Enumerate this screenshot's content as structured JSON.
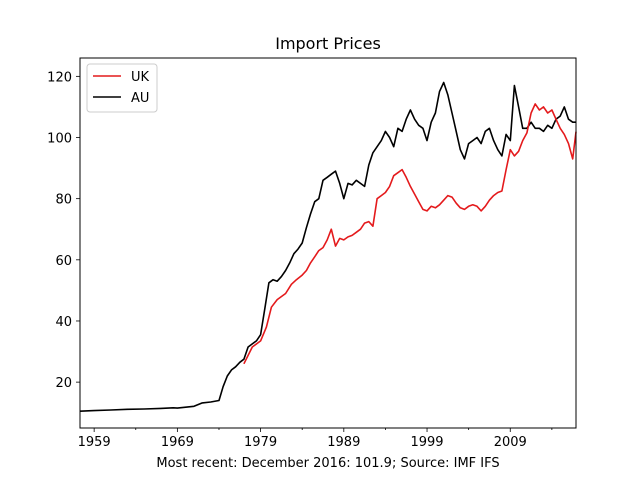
{
  "chart_data": {
    "type": "line",
    "title": "Import Prices",
    "xlabel": "Most recent: December 2016: 101.9; Source: IMF IFS",
    "ylabel": "",
    "xlim": [
      1957.3,
      2016.9
    ],
    "ylim": [
      5,
      126
    ],
    "xticks": [
      1959,
      1969,
      1979,
      1989,
      1999,
      2009
    ],
    "xtick_labels": [
      "1959",
      "1969",
      "1979",
      "1989",
      "1999",
      "2009"
    ],
    "yticks": [
      20,
      40,
      60,
      80,
      100,
      120
    ],
    "ytick_labels": [
      "20",
      "40",
      "60",
      "80",
      "100",
      "120"
    ],
    "grid": false,
    "legend_position": "top-left",
    "series": [
      {
        "name": "UK",
        "color": "#e41a1c",
        "x": [
          1977.0,
          1978.0,
          1979.0,
          1979.7,
          1980.3,
          1981.0,
          1982.0,
          1982.7,
          1983.3,
          1984.0,
          1984.5,
          1985.0,
          1985.5,
          1986.0,
          1986.5,
          1987.0,
          1987.5,
          1988.0,
          1988.5,
          1989.0,
          1989.5,
          1990.0,
          1990.5,
          1991.0,
          1991.5,
          1992.0,
          1992.5,
          1993.0,
          1993.5,
          1994.0,
          1994.5,
          1995.0,
          1995.5,
          1996.0,
          1996.5,
          1997.0,
          1997.5,
          1998.0,
          1998.5,
          1999.0,
          1999.5,
          2000.0,
          2000.5,
          2001.0,
          2001.5,
          2002.0,
          2002.5,
          2003.0,
          2003.5,
          2004.0,
          2004.5,
          2005.0,
          2005.5,
          2006.0,
          2006.5,
          2007.0,
          2007.5,
          2008.0,
          2008.5,
          2009.0,
          2009.5,
          2010.0,
          2010.5,
          2011.0,
          2011.5,
          2012.0,
          2012.5,
          2013.0,
          2013.5,
          2014.0,
          2014.5,
          2015.0,
          2015.5,
          2016.0,
          2016.5,
          2016.9
        ],
        "values": [
          26,
          31.5,
          33.5,
          38,
          44.5,
          47,
          49,
          52,
          53.5,
          55,
          56.5,
          59,
          61,
          63,
          64,
          66.5,
          70,
          64.5,
          67,
          66.5,
          67.5,
          68,
          69,
          70,
          72,
          72.5,
          71,
          80,
          81,
          82,
          84,
          87.5,
          88.5,
          89.5,
          87,
          84,
          81.5,
          79,
          76.5,
          76,
          77.5,
          77,
          78,
          79.5,
          81,
          80.5,
          78.5,
          77,
          76.5,
          77.5,
          78,
          77.5,
          76,
          77.5,
          79.5,
          81,
          82,
          82.5,
          89.5,
          96,
          94,
          95.5,
          99,
          101.5,
          108,
          111,
          109,
          110,
          108,
          109,
          106,
          103,
          101,
          98,
          93,
          101.9
        ]
      },
      {
        "name": "AU",
        "color": "#000000",
        "x": [
          1957.3,
          1959.0,
          1961.0,
          1963.0,
          1965.0,
          1967.0,
          1968.5,
          1969.0,
          1971.0,
          1972.0,
          1973.0,
          1974.0,
          1974.5,
          1975.0,
          1975.5,
          1976.0,
          1976.5,
          1977.0,
          1977.5,
          1978.0,
          1978.5,
          1979.0,
          1979.5,
          1980.0,
          1980.5,
          1981.0,
          1981.5,
          1982.0,
          1982.5,
          1983.0,
          1983.5,
          1984.0,
          1984.5,
          1985.0,
          1985.5,
          1986.0,
          1986.5,
          1987.0,
          1987.5,
          1988.0,
          1988.5,
          1989.0,
          1989.5,
          1990.0,
          1990.5,
          1991.0,
          1991.5,
          1992.0,
          1992.5,
          1993.0,
          1993.5,
          1994.0,
          1994.5,
          1995.0,
          1995.5,
          1996.0,
          1996.5,
          1997.0,
          1997.5,
          1998.0,
          1998.5,
          1999.0,
          1999.5,
          2000.0,
          2000.5,
          2001.0,
          2001.5,
          2002.0,
          2002.5,
          2003.0,
          2003.5,
          2004.0,
          2004.5,
          2005.0,
          2005.5,
          2006.0,
          2006.5,
          2007.0,
          2007.5,
          2008.0,
          2008.5,
          2009.0,
          2009.5,
          2010.0,
          2010.5,
          2011.0,
          2011.5,
          2012.0,
          2012.5,
          2013.0,
          2013.5,
          2014.0,
          2014.5,
          2015.0,
          2015.5,
          2016.0,
          2016.5,
          2016.9
        ],
        "values": [
          10.5,
          10.7,
          10.9,
          11.1,
          11.2,
          11.4,
          11.6,
          11.5,
          12.1,
          13.2,
          13.5,
          14.0,
          18.5,
          22.0,
          24.0,
          25.0,
          26.5,
          27.5,
          31.5,
          32.5,
          33.5,
          35.5,
          44,
          52.5,
          53.5,
          53.0,
          54.5,
          56.5,
          59,
          62,
          63.5,
          65.5,
          70.5,
          75,
          79,
          80,
          86,
          87,
          88,
          89,
          85,
          80,
          85,
          84.5,
          86,
          85,
          84,
          91,
          95,
          97,
          99,
          102,
          100,
          97,
          103,
          102,
          106,
          109,
          106,
          104,
          103,
          99,
          105,
          108,
          115,
          118,
          114,
          108,
          102,
          96,
          93,
          98,
          99,
          100,
          98,
          102,
          103,
          99,
          96,
          94,
          101,
          99,
          117,
          110,
          103,
          103,
          105,
          103,
          103,
          102,
          104,
          103,
          106,
          107,
          110,
          106,
          105,
          105
        ]
      }
    ]
  }
}
